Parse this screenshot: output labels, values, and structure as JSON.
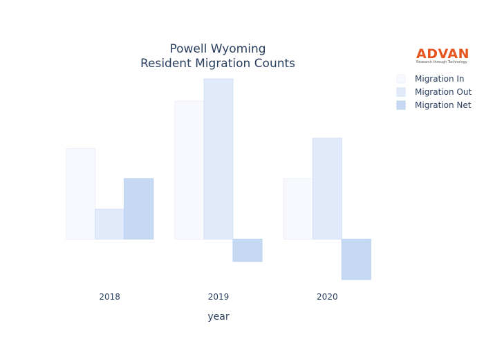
{
  "chart_data": {
    "type": "bar",
    "title_lines": [
      "Powell Wyoming",
      "Resident Migration Counts"
    ],
    "xlabel": "year",
    "ylabel": "",
    "categories": [
      "2018",
      "2019",
      "2020"
    ],
    "series": [
      {
        "name": "Migration In",
        "values": [
          130,
          198,
          87
        ],
        "color": "#f8f9fe",
        "stroke": "#eceff9"
      },
      {
        "name": "Migration Out",
        "values": [
          43,
          230,
          145
        ],
        "color": "#e0eafa",
        "stroke": "#d3e0f6"
      },
      {
        "name": "Migration Net",
        "values": [
          87,
          -32,
          -58
        ],
        "color": "#c5d9f3",
        "stroke": "#b8cfee"
      }
    ],
    "ylim": [
      -62,
      232
    ],
    "grid": false,
    "legend_position": "top-right"
  },
  "logo": {
    "name": "advan-logo",
    "main_text": "ADVAN",
    "sub_text": "Research through Technology",
    "color": "#e8541e"
  }
}
